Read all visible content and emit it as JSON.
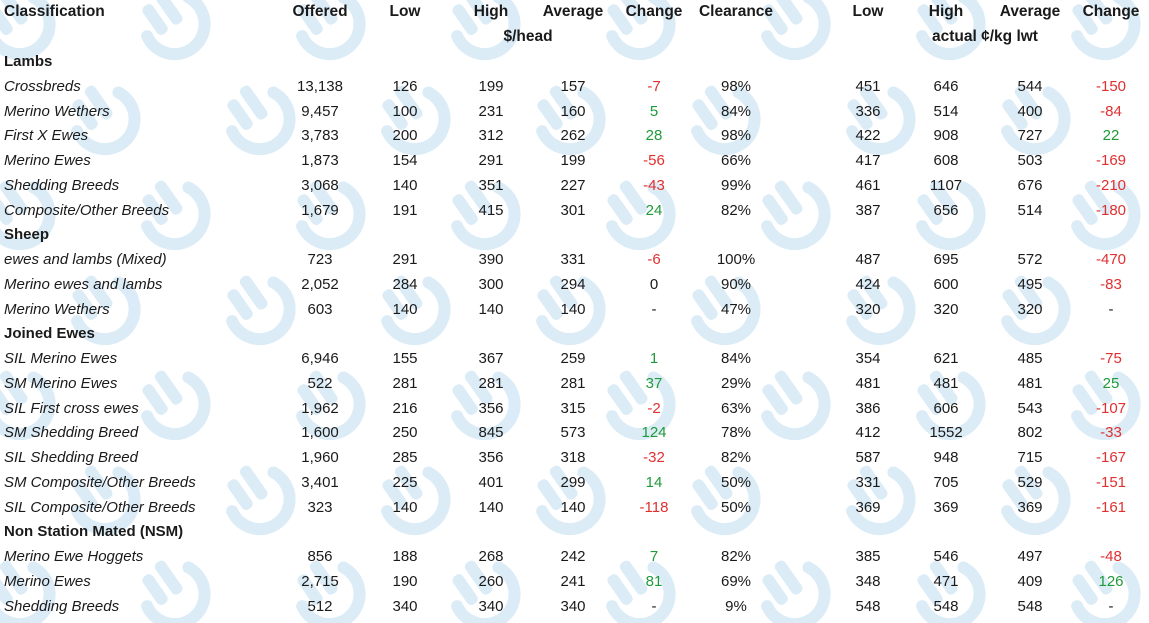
{
  "header": {
    "classification": "Classification",
    "offered": "Offered",
    "low": "Low",
    "high": "High",
    "average": "Average",
    "change": "Change",
    "clearance": "Clearance",
    "low2": "Low",
    "high2": "High",
    "average2": "Average",
    "change2": "Change",
    "unit_head": "$/head",
    "unit_kg": "actual ¢/kg lwt"
  },
  "rows": [
    {
      "type": "section",
      "label": "Lambs"
    },
    {
      "type": "data",
      "label": "Crossbreds",
      "offered": "13,138",
      "low": "126",
      "high": "199",
      "avg": "157",
      "chg": "-7",
      "clear": "98%",
      "low2": "451",
      "high2": "646",
      "avg2": "544",
      "chg2": "-150"
    },
    {
      "type": "data",
      "label": "Merino Wethers",
      "offered": "9,457",
      "low": "100",
      "high": "231",
      "avg": "160",
      "chg": "5",
      "clear": "84%",
      "low2": "336",
      "high2": "514",
      "avg2": "400",
      "chg2": "-84"
    },
    {
      "type": "data",
      "label": "First X Ewes",
      "offered": "3,783",
      "low": "200",
      "high": "312",
      "avg": "262",
      "chg": "28",
      "clear": "98%",
      "low2": "422",
      "high2": "908",
      "avg2": "727",
      "chg2": "22"
    },
    {
      "type": "data",
      "label": "Merino Ewes",
      "offered": "1,873",
      "low": "154",
      "high": "291",
      "avg": "199",
      "chg": "-56",
      "clear": "66%",
      "low2": "417",
      "high2": "608",
      "avg2": "503",
      "chg2": "-169"
    },
    {
      "type": "data",
      "label": "Shedding Breeds",
      "offered": "3,068",
      "low": "140",
      "high": "351",
      "avg": "227",
      "chg": "-43",
      "clear": "99%",
      "low2": "461",
      "high2": "1107",
      "avg2": "676",
      "chg2": "-210"
    },
    {
      "type": "data",
      "label": "Composite/Other Breeds",
      "offered": "1,679",
      "low": "191",
      "high": "415",
      "avg": "301",
      "chg": "24",
      "clear": "82%",
      "low2": "387",
      "high2": "656",
      "avg2": "514",
      "chg2": "-180"
    },
    {
      "type": "section",
      "label": "Sheep"
    },
    {
      "type": "data",
      "label": "ewes and lambs (Mixed)",
      "offered": "723",
      "low": "291",
      "high": "390",
      "avg": "331",
      "chg": "-6",
      "clear": "100%",
      "low2": "487",
      "high2": "695",
      "avg2": "572",
      "chg2": "-470"
    },
    {
      "type": "data",
      "label": "Merino ewes and lambs",
      "offered": "2,052",
      "low": "284",
      "high": "300",
      "avg": "294",
      "chg": "0",
      "clear": "90%",
      "low2": "424",
      "high2": "600",
      "avg2": "495",
      "chg2": "-83"
    },
    {
      "type": "data",
      "label": "Merino Wethers",
      "offered": "603",
      "low": "140",
      "high": "140",
      "avg": "140",
      "chg": "-",
      "clear": "47%",
      "low2": "320",
      "high2": "320",
      "avg2": "320",
      "chg2": "-"
    },
    {
      "type": "section",
      "label": "Joined Ewes"
    },
    {
      "type": "data",
      "label": "SIL Merino Ewes",
      "offered": "6,946",
      "low": "155",
      "high": "367",
      "avg": "259",
      "chg": "1",
      "clear": "84%",
      "low2": "354",
      "high2": "621",
      "avg2": "485",
      "chg2": "-75"
    },
    {
      "type": "data",
      "label": "SM Merino Ewes",
      "offered": "522",
      "low": "281",
      "high": "281",
      "avg": "281",
      "chg": "37",
      "clear": "29%",
      "low2": "481",
      "high2": "481",
      "avg2": "481",
      "chg2": "25"
    },
    {
      "type": "data",
      "label": "SIL First cross ewes",
      "offered": "1,962",
      "low": "216",
      "high": "356",
      "avg": "315",
      "chg": "-2",
      "clear": "63%",
      "low2": "386",
      "high2": "606",
      "avg2": "543",
      "chg2": "-107"
    },
    {
      "type": "data",
      "label": "SM Shedding Breed",
      "offered": "1,600",
      "low": "250",
      "high": "845",
      "avg": "573",
      "chg": "124",
      "clear": "78%",
      "low2": "412",
      "high2": "1552",
      "avg2": "802",
      "chg2": "-33"
    },
    {
      "type": "data",
      "label": "SIL Shedding Breed",
      "offered": "1,960",
      "low": "285",
      "high": "356",
      "avg": "318",
      "chg": "-32",
      "clear": "82%",
      "low2": "587",
      "high2": "948",
      "avg2": "715",
      "chg2": "-167"
    },
    {
      "type": "data",
      "label": "SM Composite/Other Breeds",
      "offered": "3,401",
      "low": "225",
      "high": "401",
      "avg": "299",
      "chg": "14",
      "clear": "50%",
      "low2": "331",
      "high2": "705",
      "avg2": "529",
      "chg2": "-151"
    },
    {
      "type": "data",
      "label": "SIL Composite/Other Breeds",
      "offered": "323",
      "low": "140",
      "high": "140",
      "avg": "140",
      "chg": "-118",
      "clear": "50%",
      "low2": "369",
      "high2": "369",
      "avg2": "369",
      "chg2": "-161"
    },
    {
      "type": "section",
      "label": "Non Station Mated (NSM)"
    },
    {
      "type": "data",
      "label": "Merino Ewe Hoggets",
      "offered": "856",
      "low": "188",
      "high": "268",
      "avg": "242",
      "chg": "7",
      "clear": "82%",
      "low2": "385",
      "high2": "546",
      "avg2": "497",
      "chg2": "-48"
    },
    {
      "type": "data",
      "label": "Merino Ewes",
      "offered": "2,715",
      "low": "190",
      "high": "260",
      "avg": "241",
      "chg": "81",
      "clear": "69%",
      "low2": "348",
      "high2": "471",
      "avg2": "409",
      "chg2": "126"
    },
    {
      "type": "data",
      "label": "Shedding Breeds",
      "offered": "512",
      "low": "340",
      "high": "340",
      "avg": "340",
      "chg": "-",
      "clear": "9%",
      "low2": "548",
      "high2": "548",
      "avg2": "548",
      "chg2": "-"
    }
  ],
  "colors": {
    "negative": "#e03030",
    "positive": "#1f9a3a",
    "text": "#1a1a1a",
    "watermark": "#cfe6f5"
  },
  "watermark_icon": "cow-logo-icon"
}
